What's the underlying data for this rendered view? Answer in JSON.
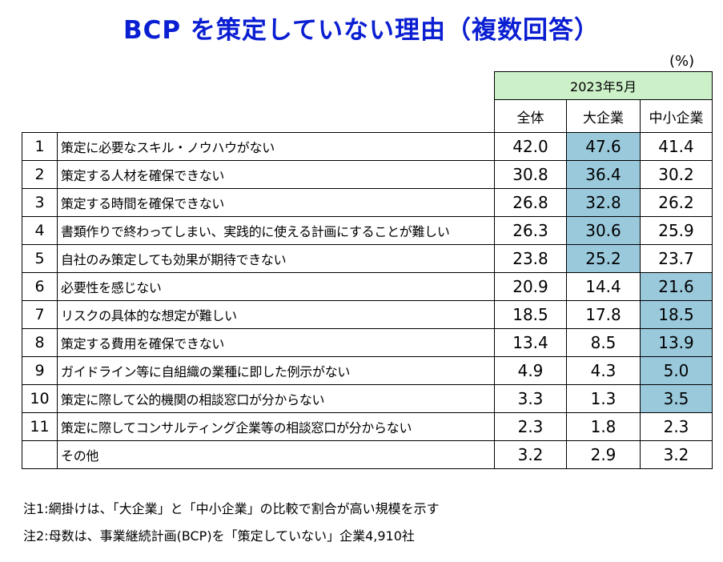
{
  "title": "BCP を策定していない理由（複数回答）",
  "unit": "(%)",
  "period": "2023年5月",
  "columns": [
    "全体",
    "大企業",
    "中小企業"
  ],
  "rows": [
    {
      "no": "1",
      "label": "策定に必要なスキル・ノウハウがない",
      "values": [
        "42.0",
        "47.6",
        "41.4"
      ],
      "highlight": 1
    },
    {
      "no": "2",
      "label": "策定する人材を確保できない",
      "values": [
        "30.8",
        "36.4",
        "30.2"
      ],
      "highlight": 1
    },
    {
      "no": "3",
      "label": "策定する時間を確保できない",
      "values": [
        "26.8",
        "32.8",
        "26.2"
      ],
      "highlight": 1
    },
    {
      "no": "4",
      "label": "書類作りで終わってしまい、実践的に使える計画にすることが難しい",
      "values": [
        "26.3",
        "30.6",
        "25.9"
      ],
      "highlight": 1
    },
    {
      "no": "5",
      "label": "自社のみ策定しても効果が期待できない",
      "values": [
        "23.8",
        "25.2",
        "23.7"
      ],
      "highlight": 1
    },
    {
      "no": "6",
      "label": "必要性を感じない",
      "values": [
        "20.9",
        "14.4",
        "21.6"
      ],
      "highlight": 2
    },
    {
      "no": "7",
      "label": "リスクの具体的な想定が難しい",
      "values": [
        "18.5",
        "17.8",
        "18.5"
      ],
      "highlight": 2
    },
    {
      "no": "8",
      "label": "策定する費用を確保できない",
      "values": [
        "13.4",
        "8.5",
        "13.9"
      ],
      "highlight": 2
    },
    {
      "no": "9",
      "label": "ガイドライン等に自組織の業種に即した例示がない",
      "values": [
        "4.9",
        "4.3",
        "5.0"
      ],
      "highlight": 2
    },
    {
      "no": "10",
      "label": "策定に際して公的機関の相談窓口が分からない",
      "values": [
        "3.3",
        "1.3",
        "3.5"
      ],
      "highlight": 2
    },
    {
      "no": "11",
      "label": "策定に際してコンサルティング企業等の相談窓口が分からない",
      "values": [
        "2.3",
        "1.8",
        "2.3"
      ],
      "highlight": -1
    },
    {
      "no": "",
      "label": "その他",
      "values": [
        "3.2",
        "2.9",
        "3.2"
      ],
      "highlight": -1
    }
  ],
  "notes": [
    "注1:網掛けは、「大企業」と「中小企業」の比較で割合が高い規模を示す",
    "注2:母数は、事業継続計画(BCP)を「策定していない」企業4,910社"
  ]
}
